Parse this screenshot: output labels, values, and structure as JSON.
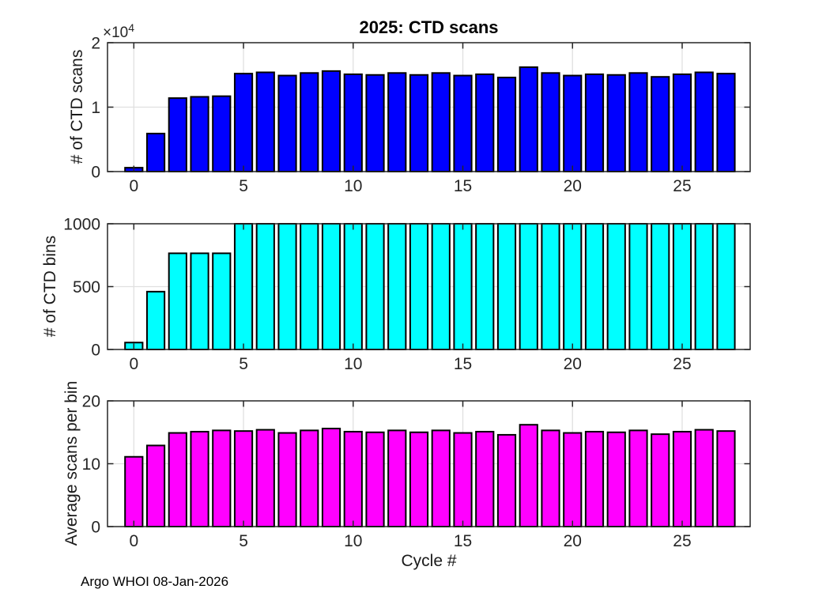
{
  "title": "2025: CTD scans",
  "xlabel": "Cycle #",
  "footer": "Argo WHOI 08-Jan-2026",
  "colors": {
    "scans_bar": "#0000FF",
    "bins_bar": "#00FFFF",
    "avg_bar": "#FF00FF",
    "bar_edge": "#000000",
    "grid": "#E0E0E0",
    "axis": "#262626",
    "background": "#FFFFFF"
  },
  "chart_data": [
    {
      "type": "bar",
      "title": "2025: CTD scans",
      "ylabel": "# of CTD scans",
      "bar_color": "#0000FF",
      "offset": {
        "base": "×10",
        "exp": "4"
      },
      "categories": [
        0,
        1,
        2,
        3,
        4,
        5,
        6,
        7,
        8,
        9,
        10,
        11,
        12,
        13,
        14,
        15,
        16,
        17,
        18,
        19,
        20,
        21,
        22,
        23,
        24,
        25,
        26,
        27
      ],
      "values": [
        600,
        5900,
        11400,
        11600,
        11700,
        15200,
        15400,
        14900,
        15300,
        15600,
        15100,
        15000,
        15300,
        15000,
        15300,
        14900,
        15100,
        14600,
        16200,
        15300,
        14900,
        15100,
        15000,
        15300,
        14700,
        15100,
        15400,
        15200
      ],
      "xlim": [
        -1.2,
        28.1
      ],
      "ylim": [
        0,
        20000
      ],
      "xticks": [
        0,
        5,
        10,
        15,
        20,
        25
      ],
      "yticks": [
        0,
        10000,
        20000
      ],
      "ytick_labels": [
        "0",
        "1",
        "2"
      ],
      "grid": true,
      "legend": null
    },
    {
      "type": "bar",
      "title": "",
      "ylabel": "# of CTD bins",
      "bar_color": "#00FFFF",
      "categories": [
        0,
        1,
        2,
        3,
        4,
        5,
        6,
        7,
        8,
        9,
        10,
        11,
        12,
        13,
        14,
        15,
        16,
        17,
        18,
        19,
        20,
        21,
        22,
        23,
        24,
        25,
        26,
        27
      ],
      "values": [
        55,
        460,
        765,
        765,
        765,
        1000,
        1000,
        1000,
        1000,
        1000,
        1000,
        1000,
        1000,
        1000,
        1000,
        1000,
        1000,
        1000,
        1000,
        1000,
        1000,
        1000,
        1000,
        1000,
        1000,
        1000,
        1000,
        1000
      ],
      "xlim": [
        -1.2,
        28.1
      ],
      "ylim": [
        0,
        1000
      ],
      "xticks": [
        0,
        5,
        10,
        15,
        20,
        25
      ],
      "yticks": [
        0,
        500,
        1000
      ],
      "ytick_labels": [
        "0",
        "500",
        "1000"
      ],
      "grid": true,
      "legend": null
    },
    {
      "type": "bar",
      "title": "",
      "ylabel": "Average scans per bin",
      "xlabel": "Cycle #",
      "bar_color": "#FF00FF",
      "categories": [
        0,
        1,
        2,
        3,
        4,
        5,
        6,
        7,
        8,
        9,
        10,
        11,
        12,
        13,
        14,
        15,
        16,
        17,
        18,
        19,
        20,
        21,
        22,
        23,
        24,
        25,
        26,
        27
      ],
      "values": [
        11.1,
        12.9,
        14.9,
        15.1,
        15.3,
        15.2,
        15.4,
        14.9,
        15.3,
        15.6,
        15.1,
        15.0,
        15.3,
        15.0,
        15.3,
        14.9,
        15.1,
        14.6,
        16.2,
        15.3,
        14.9,
        15.1,
        15.0,
        15.3,
        14.7,
        15.1,
        15.4,
        15.2
      ],
      "xlim": [
        -1.2,
        28.1
      ],
      "ylim": [
        0,
        20
      ],
      "xticks": [
        0,
        5,
        10,
        15,
        20,
        25
      ],
      "yticks": [
        0,
        10,
        20
      ],
      "ytick_labels": [
        "0",
        "10",
        "20"
      ],
      "grid": true,
      "legend": null
    }
  ]
}
